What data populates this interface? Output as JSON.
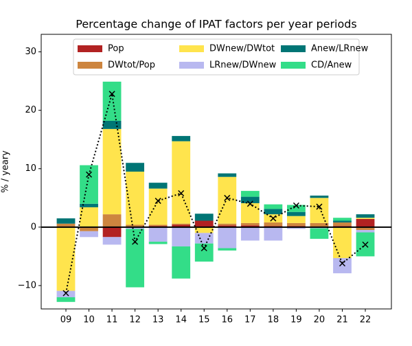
{
  "chart_data": {
    "type": "stacked_bar",
    "title": "Percentage change of IPAT factors per year periods",
    "y_label": "% / yeary",
    "categories": [
      "09",
      "10",
      "11",
      "12",
      "13",
      "14",
      "15",
      "16",
      "17",
      "18",
      "19",
      "20",
      "21",
      "22"
    ],
    "series": [
      {
        "name": "Pop",
        "color": "#b22222",
        "values": [
          0,
          0,
          -1.7,
          0.1,
          0.2,
          0.4,
          1.1,
          0.3,
          0.3,
          0.2,
          0.2,
          0.1,
          0.2,
          1.4
        ]
      },
      {
        "name": "DWtot/Pop",
        "color": "#cd853f",
        "values": [
          0.6,
          -0.7,
          2.2,
          0.3,
          0.2,
          0.2,
          0,
          0.3,
          0.4,
          0.6,
          0.5,
          0.6,
          0.6,
          -0.5
        ]
      },
      {
        "name": "DWnew/DWtot",
        "color": "#ffe44d",
        "values": [
          -10.9,
          3.4,
          14.6,
          9.1,
          6.2,
          14.1,
          -1.0,
          8.0,
          3.4,
          1.4,
          1.2,
          4.3,
          -5.3,
          0.2
        ]
      },
      {
        "name": "LRnew/DWnew",
        "color": "#b8b8f0",
        "values": [
          -1.1,
          -1.0,
          -1.3,
          -0.3,
          -2.5,
          -3.3,
          -1.8,
          -3.6,
          -2.3,
          -2.3,
          -0.3,
          -0.2,
          -2.6,
          -0.4
        ]
      },
      {
        "name": "Anew/LRnew",
        "color": "#007575",
        "values": [
          0.9,
          0.6,
          1.4,
          1.5,
          1.0,
          0.9,
          1.2,
          0.6,
          1.1,
          0.9,
          0.7,
          0.4,
          0.3,
          0.6
        ]
      },
      {
        "name": "CD/Anew",
        "color": "#33dd88",
        "values": [
          -0.8,
          6.6,
          6.7,
          -10.0,
          -0.4,
          -5.5,
          -3.1,
          -0.4,
          1.0,
          0.8,
          1.2,
          -1.8,
          0.5,
          -4.1
        ]
      }
    ],
    "line_values": [
      -11.3,
      9.0,
      22.8,
      -2.5,
      4.5,
      5.8,
      -3.6,
      5.0,
      4.0,
      1.5,
      3.7,
      3.5,
      -6.2,
      -3.0
    ],
    "ylim": [
      -14,
      33
    ],
    "yticks": [
      {
        "value": -10,
        "label": "−10"
      },
      0,
      10,
      20,
      30
    ],
    "legend": "upper center"
  }
}
